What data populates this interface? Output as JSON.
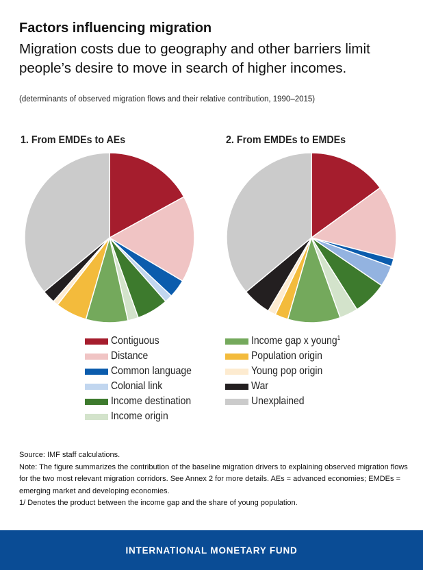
{
  "header": {
    "title": "Factors influencing migration",
    "subtitle": "Migration costs due to geography and other barriers limit people’s desire to move in search of higher incomes.",
    "units": "(determinants of observed migration flows and their relative contribution, 1990–2015)"
  },
  "chart_data": [
    {
      "type": "pie",
      "title": "1. From EMDEs to AEs",
      "slices": [
        {
          "label": "Contiguous",
          "value": 17,
          "color": "#a51d2d"
        },
        {
          "label": "Distance",
          "value": 16.5,
          "color": "#f0c4c4"
        },
        {
          "label": "Common language",
          "value": 3.5,
          "color": "#0b5cad"
        },
        {
          "label": "Colonial link",
          "value": 1.5,
          "color": "#c1d6ef"
        },
        {
          "label": "Income destination",
          "value": 6,
          "color": "#3d7a2d"
        },
        {
          "label": "Income origin",
          "value": 2,
          "color": "#d3e3cb"
        },
        {
          "label": "Income gap x young",
          "value": 8,
          "color": "#74a95c"
        },
        {
          "label": "Population origin",
          "value": 6,
          "color": "#f3bb3c"
        },
        {
          "label": "Young pop origin",
          "value": 1,
          "color": "#fdebd0"
        },
        {
          "label": "War",
          "value": 2.5,
          "color": "#231f20"
        },
        {
          "label": "Unexplained",
          "value": 36,
          "color": "#cbcbcb"
        }
      ]
    },
    {
      "type": "pie",
      "title": "2. From EMDEs to EMDEs",
      "slices": [
        {
          "label": "Contiguous",
          "value": 15,
          "color": "#a51d2d"
        },
        {
          "label": "Distance",
          "value": 14,
          "color": "#f0c4c4"
        },
        {
          "label": "Common language",
          "value": 1.5,
          "color": "#0b5cad"
        },
        {
          "label": "Colonial link",
          "value": 4,
          "color": "#93b3e0"
        },
        {
          "label": "Income destination",
          "value": 6.5,
          "color": "#3d7a2d"
        },
        {
          "label": "Income origin",
          "value": 3.5,
          "color": "#d3e3cb"
        },
        {
          "label": "Income gap x young",
          "value": 10,
          "color": "#74a95c"
        },
        {
          "label": "Population origin",
          "value": 2.5,
          "color": "#f3bb3c"
        },
        {
          "label": "Young pop origin",
          "value": 1.5,
          "color": "#fdebd0"
        },
        {
          "label": "War",
          "value": 5.5,
          "color": "#231f20"
        },
        {
          "label": "Unexplained",
          "value": 36,
          "color": "#cbcbcb"
        }
      ]
    }
  ],
  "legend": [
    {
      "label": "Contiguous",
      "color": "#a51d2d"
    },
    {
      "label": "Distance",
      "color": "#f0c4c4"
    },
    {
      "label": "Common language",
      "color": "#0b5cad"
    },
    {
      "label": "Colonial link",
      "color": "#c1d6ef"
    },
    {
      "label": "Income destination",
      "color": "#3d7a2d"
    },
    {
      "label": "Income origin",
      "color": "#d3e3cb"
    },
    {
      "label": "Income gap x young",
      "sup": "1",
      "color": "#74a95c"
    },
    {
      "label": "Population origin",
      "color": "#f3bb3c"
    },
    {
      "label": "Young pop origin",
      "color": "#fdebd0"
    },
    {
      "label": "War",
      "color": "#231f20"
    },
    {
      "label": "Unexplained",
      "color": "#cbcbcb"
    }
  ],
  "notes": {
    "source": "Source: IMF staff calculations.",
    "note": "Note: The figure summarizes the contribution of the baseline migration drivers to explaining observed migration flows for the two most relevant migration corridors. See Annex 2 for more details. AEs = advanced economies; EMDEs = emerging market and developing economies.",
    "footnote": "1/ Denotes the product between the income gap and the share of young population."
  },
  "footer": {
    "label": "INTERNATIONAL MONETARY FUND",
    "background": "#0a4c95"
  }
}
